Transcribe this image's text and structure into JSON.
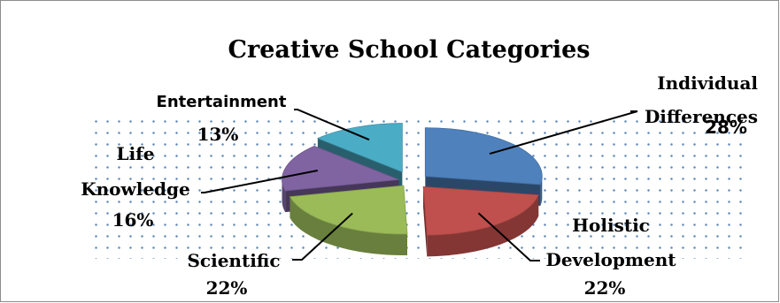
{
  "chart_data": {
    "type": "pie",
    "title": "Creative School Categories",
    "slices": [
      {
        "label_lines": [
          "Individual",
          "Differences"
        ],
        "percent_text": "28%",
        "value": 28,
        "color": "#4f81bd"
      },
      {
        "label_lines": [
          "Holistic",
          "Development"
        ],
        "percent_text": "22%",
        "value": 22,
        "color": "#c0504d"
      },
      {
        "label_lines": [
          "Scientific"
        ],
        "percent_text": "22%",
        "value": 22,
        "color": "#9bbb59"
      },
      {
        "label_lines": [
          "Life",
          "Knowledge"
        ],
        "percent_text": "16%",
        "value": 16,
        "color": "#8064a2"
      },
      {
        "label_lines": [
          "Entertainment"
        ],
        "percent_text": "13%",
        "value": 13,
        "color": "#4bacc6"
      }
    ],
    "legend": "none",
    "style": "exploded 3d pie"
  }
}
